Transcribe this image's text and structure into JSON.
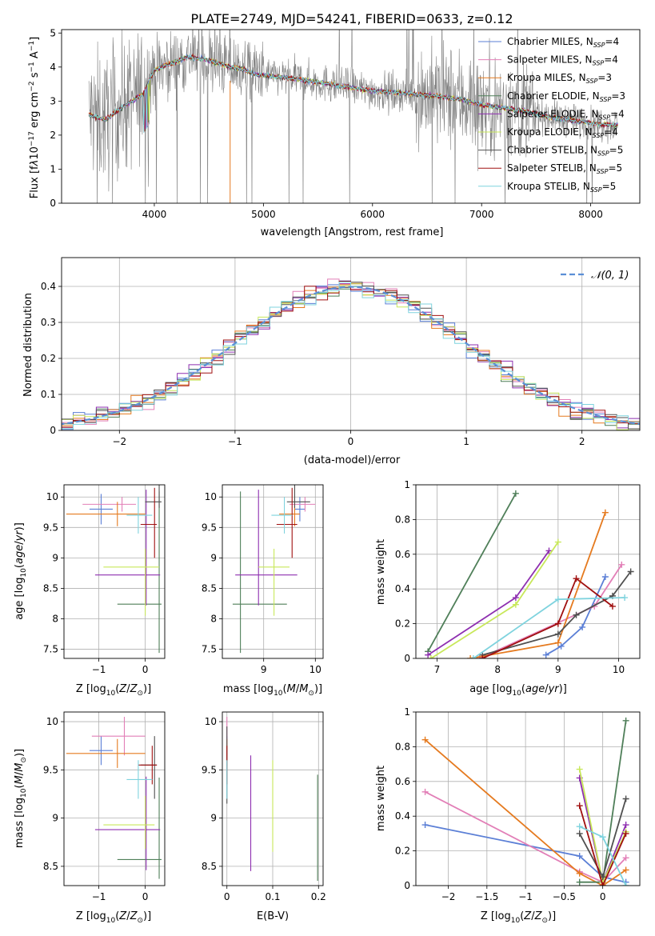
{
  "figure_title": "PLATE=2749, MJD=54241, FIBERID=0633, z=0.12",
  "colors": {
    "chabrier_miles": "#5b7fd6",
    "salpeter_miles": "#e27fb7",
    "kroupa_miles": "#e57a1f",
    "chabrier_elodie": "#4f7f59",
    "salpeter_elodie": "#8e2fb0",
    "kroupa_elodie": "#c8e85a",
    "chabrier_stelib": "#505050",
    "salpeter_stelib": "#a01010",
    "kroupa_stelib": "#7fd3de",
    "normal": "#5b8fd6"
  },
  "legend": [
    {
      "key": "chabrier_miles",
      "label": "Chabrier MILES, N",
      "sub": "SSP",
      "suffix": "=4"
    },
    {
      "key": "salpeter_miles",
      "label": "Salpeter MILES, N",
      "sub": "SSP",
      "suffix": "=4"
    },
    {
      "key": "kroupa_miles",
      "label": "Kroupa MILES, N",
      "sub": "SSP",
      "suffix": "=3"
    },
    {
      "key": "chabrier_elodie",
      "label": "Chabrier ELODIE, N",
      "sub": "SSP",
      "suffix": "=3"
    },
    {
      "key": "salpeter_elodie",
      "label": "Salpeter ELODIE, N",
      "sub": "SSP",
      "suffix": "=4"
    },
    {
      "key": "kroupa_elodie",
      "label": "Kroupa ELODIE, N",
      "sub": "SSP",
      "suffix": "=4"
    },
    {
      "key": "chabrier_stelib",
      "label": "Chabrier STELIB, N",
      "sub": "SSP",
      "suffix": "=5"
    },
    {
      "key": "salpeter_stelib",
      "label": "Salpeter STELIB, N",
      "sub": "SSP",
      "suffix": "=5"
    },
    {
      "key": "kroupa_stelib",
      "label": "Kroupa STELIB, N",
      "sub": "SSP",
      "suffix": "=5"
    }
  ],
  "chart_data": [
    {
      "id": "spectrum",
      "type": "line",
      "xlabel": "wavelength [Angstrom, rest frame]",
      "ylabel": "Flux [f_λ 10^-17 erg cm^-2 s^-1 A^-1]",
      "xlim": [
        3150,
        8450
      ],
      "ylim": [
        0,
        5.1
      ],
      "xticks": [
        4000,
        5000,
        6000,
        7000,
        8000
      ],
      "yticks": [
        0,
        1,
        2,
        3,
        4,
        5
      ],
      "data_color": "#808080",
      "data_range": [
        3400,
        8250
      ],
      "model_continuum": {
        "x": [
          3400,
          3500,
          3550,
          3600,
          3650,
          3700,
          3800,
          3900,
          3950,
          4000,
          4100,
          4200,
          4300,
          4400,
          4500,
          4600,
          4700,
          4800,
          4900,
          5000,
          5200,
          5400,
          5600,
          5800,
          6000,
          6200,
          6400,
          6600,
          6800,
          7000,
          7200,
          7400,
          7600,
          7800,
          8000,
          8200
        ],
        "y": [
          2.6,
          2.5,
          2.45,
          2.55,
          2.7,
          2.8,
          3.0,
          3.2,
          3.6,
          3.9,
          4.05,
          4.15,
          4.3,
          4.25,
          4.2,
          4.1,
          4.0,
          3.95,
          3.8,
          3.75,
          3.7,
          3.6,
          3.5,
          3.4,
          3.3,
          3.25,
          3.2,
          3.15,
          3.05,
          2.9,
          2.8,
          2.7,
          2.55,
          2.45,
          2.35,
          2.3
        ]
      }
    },
    {
      "id": "residuals",
      "type": "histogram",
      "xlabel": "(data-model)/error",
      "ylabel": "Normed distribution",
      "xlim": [
        -2.5,
        2.5
      ],
      "ylim": [
        0,
        0.48
      ],
      "xticks": [
        -2,
        -1,
        0,
        1,
        2
      ],
      "yticks": [
        0.0,
        0.1,
        0.2,
        0.3,
        0.4
      ],
      "legend_label": "𝒩(0, 1)",
      "grid": true
    },
    {
      "id": "age_vs_Z",
      "type": "scatter",
      "xlabel": "Z [log10(Z/Z⊙)]",
      "ylabel": "age  [log10(age/yr)]",
      "xlim": [
        -1.75,
        0.42
      ],
      "ylim": [
        7.35,
        10.2
      ],
      "xticks": [
        -1,
        0
      ],
      "yticks": [
        7.5,
        8.0,
        8.5,
        9.0,
        9.5,
        10.0
      ],
      "grid": true,
      "points": [
        {
          "s": "chabrier_miles",
          "x": -0.95,
          "y": 9.8,
          "xerr": [
            0.25,
            0.25
          ],
          "yerr": [
            0.25,
            0.25
          ]
        },
        {
          "s": "salpeter_miles",
          "x": -0.5,
          "y": 9.88,
          "xerr": [
            0.85,
            0.3
          ],
          "yerr": [
            0.12,
            0.12
          ]
        },
        {
          "s": "kroupa_miles",
          "x": -0.6,
          "y": 9.72,
          "xerr": [
            1.1,
            0.6
          ],
          "yerr": [
            0.2,
            0.2
          ]
        },
        {
          "s": "chabrier_elodie",
          "x": 0.3,
          "y": 8.24,
          "xerr": [
            0.9,
            0.05
          ],
          "yerr": [
            0.8,
            1.85
          ]
        },
        {
          "s": "salpeter_elodie",
          "x": 0.02,
          "y": 8.72,
          "xerr": [
            1.1,
            0.3
          ],
          "yerr": [
            0.5,
            1.4
          ]
        },
        {
          "s": "kroupa_elodie",
          "x": 0.0,
          "y": 8.85,
          "xerr": [
            0.9,
            0.3
          ],
          "yerr": [
            0.8,
            0.3
          ]
        },
        {
          "s": "chabrier_stelib",
          "x": 0.3,
          "y": 9.92,
          "xerr": [
            0.3,
            0.05
          ],
          "yerr": [
            0.1,
            2.5
          ]
        },
        {
          "s": "salpeter_stelib",
          "x": 0.2,
          "y": 9.55,
          "xerr": [
            0.3,
            0.05
          ],
          "yerr": [
            0.55,
            0.6
          ]
        },
        {
          "s": "kroupa_stelib",
          "x": -0.15,
          "y": 9.7,
          "xerr": [
            0.25,
            0.3
          ],
          "yerr": [
            0.3,
            0.3
          ]
        }
      ]
    },
    {
      "id": "age_vs_mass",
      "type": "scatter",
      "xlabel": "mass [log10(M/M⊙)]",
      "ylabel": "",
      "xlim": [
        8.2,
        10.15
      ],
      "ylim": [
        7.35,
        10.2
      ],
      "xticks": [
        9,
        10
      ],
      "yticks": [
        7.5,
        8.0,
        8.5,
        9.0,
        9.5,
        10.0
      ],
      "grid": true,
      "points": [
        {
          "s": "chabrier_miles",
          "x": 9.7,
          "y": 9.8,
          "xerr": [
            0.1,
            0.1
          ],
          "yerr": [
            0.2,
            0.2
          ]
        },
        {
          "s": "salpeter_miles",
          "x": 9.8,
          "y": 9.88,
          "xerr": [
            0.3,
            0.2
          ],
          "yerr": [
            0.12,
            0.12
          ]
        },
        {
          "s": "kroupa_miles",
          "x": 9.6,
          "y": 9.72,
          "xerr": [
            0.3,
            0.1
          ],
          "yerr": [
            0.2,
            0.2
          ]
        },
        {
          "s": "chabrier_elodie",
          "x": 8.55,
          "y": 8.24,
          "xerr": [
            0.15,
            0.9
          ],
          "yerr": [
            0.8,
            1.85
          ]
        },
        {
          "s": "salpeter_elodie",
          "x": 8.9,
          "y": 8.72,
          "xerr": [
            0.45,
            0.75
          ],
          "yerr": [
            0.5,
            1.4
          ]
        },
        {
          "s": "kroupa_elodie",
          "x": 9.2,
          "y": 8.85,
          "xerr": [
            0.3,
            0.3
          ],
          "yerr": [
            0.8,
            0.3
          ]
        },
        {
          "s": "chabrier_stelib",
          "x": 9.6,
          "y": 9.92,
          "xerr": [
            0.15,
            0.3
          ],
          "yerr": [
            0.1,
            2.5
          ]
        },
        {
          "s": "salpeter_stelib",
          "x": 9.55,
          "y": 9.55,
          "xerr": [
            0.3,
            0.1
          ],
          "yerr": [
            0.55,
            0.6
          ]
        },
        {
          "s": "kroupa_stelib",
          "x": 9.4,
          "y": 9.7,
          "xerr": [
            0.25,
            0.15
          ],
          "yerr": [
            0.3,
            0.3
          ]
        }
      ]
    },
    {
      "id": "weight_vs_age",
      "type": "line",
      "xlabel": "age  [log10(age/yr)]",
      "ylabel": "mass weight",
      "xlim": [
        6.65,
        10.35
      ],
      "ylim": [
        0,
        1.0
      ],
      "xticks": [
        7,
        8,
        9,
        10
      ],
      "yticks": [
        0.0,
        0.2,
        0.4,
        0.6,
        0.8,
        1.0
      ],
      "grid": true,
      "series": [
        {
          "s": "chabrier_miles",
          "x": [
            8.8,
            9.05,
            9.4,
            9.78
          ],
          "y": [
            0.02,
            0.07,
            0.18,
            0.47
          ]
        },
        {
          "s": "salpeter_miles",
          "x": [
            7.7,
            9.6,
            10.05
          ],
          "y": [
            0.0,
            0.3,
            0.54
          ]
        },
        {
          "s": "kroupa_miles",
          "x": [
            7.55,
            9.0,
            9.78
          ],
          "y": [
            0.0,
            0.09,
            0.84
          ]
        },
        {
          "s": "chabrier_elodie",
          "x": [
            6.85,
            8.3
          ],
          "y": [
            0.04,
            0.95
          ]
        },
        {
          "s": "salpeter_elodie",
          "x": [
            6.85,
            8.3,
            8.85
          ],
          "y": [
            0.02,
            0.35,
            0.62
          ]
        },
        {
          "s": "kroupa_elodie",
          "x": [
            6.9,
            8.3,
            9.0
          ],
          "y": [
            0.0,
            0.31,
            0.67
          ]
        },
        {
          "s": "chabrier_stelib",
          "x": [
            7.75,
            9.0,
            9.3,
            9.9,
            10.2
          ],
          "y": [
            0.02,
            0.14,
            0.25,
            0.36,
            0.5
          ]
        },
        {
          "s": "salpeter_stelib",
          "x": [
            7.75,
            9.0,
            9.3,
            9.9
          ],
          "y": [
            0.0,
            0.2,
            0.46,
            0.3
          ]
        },
        {
          "s": "kroupa_stelib",
          "x": [
            7.6,
            9.0,
            10.1
          ],
          "y": [
            0.0,
            0.34,
            0.35
          ]
        }
      ]
    },
    {
      "id": "mass_vs_Z",
      "type": "scatter",
      "xlabel": "Z [log10(Z/Z⊙)]",
      "ylabel": "mass [log10(M/M⊙)]",
      "xlim": [
        -1.75,
        0.42
      ],
      "ylim": [
        8.3,
        10.1
      ],
      "xticks": [
        -1,
        0
      ],
      "yticks": [
        8.5,
        9.0,
        9.5,
        10.0
      ],
      "grid": true,
      "points": [
        {
          "s": "chabrier_miles",
          "x": -0.95,
          "y": 9.7,
          "xerr": [
            0.25,
            0.25
          ],
          "yerr": [
            0.15,
            0.15
          ]
        },
        {
          "s": "salpeter_miles",
          "x": -0.45,
          "y": 9.85,
          "xerr": [
            0.7,
            0.45
          ],
          "yerr": [
            0.2,
            0.2
          ]
        },
        {
          "s": "kroupa_miles",
          "x": -0.6,
          "y": 9.67,
          "xerr": [
            1.1,
            0.6
          ],
          "yerr": [
            0.15,
            0.15
          ]
        },
        {
          "s": "chabrier_elodie",
          "x": 0.3,
          "y": 8.57,
          "xerr": [
            0.9,
            0.05
          ],
          "yerr": [
            0.2,
            0.85
          ]
        },
        {
          "s": "salpeter_elodie",
          "x": 0.02,
          "y": 8.88,
          "xerr": [
            1.1,
            0.3
          ],
          "yerr": [
            0.42,
            0.55
          ]
        },
        {
          "s": "kroupa_elodie",
          "x": 0.0,
          "y": 8.93,
          "xerr": [
            0.9,
            0.2
          ],
          "yerr": [
            0.25,
            0.3
          ]
        },
        {
          "s": "chabrier_stelib",
          "x": 0.2,
          "y": 9.55,
          "xerr": [
            0.3,
            0.05
          ],
          "yerr": [
            0.35,
            0.3
          ]
        },
        {
          "s": "salpeter_stelib",
          "x": 0.15,
          "y": 9.55,
          "xerr": [
            0.3,
            0.1
          ],
          "yerr": [
            0.2,
            0.2
          ]
        },
        {
          "s": "kroupa_stelib",
          "x": -0.15,
          "y": 9.4,
          "xerr": [
            0.25,
            0.3
          ],
          "yerr": [
            0.2,
            0.2
          ]
        }
      ]
    },
    {
      "id": "mass_vs_ebv",
      "type": "scatter",
      "xlabel": "E(B-V)",
      "ylabel": "",
      "xlim": [
        -0.01,
        0.21
      ],
      "ylim": [
        8.3,
        10.1
      ],
      "xticks": [
        0.0,
        0.1,
        0.2
      ],
      "yticks": [
        8.5,
        9.0,
        9.5,
        10.0
      ],
      "grid": true,
      "points": [
        {
          "s": "chabrier_miles",
          "x": 0.0,
          "y": 9.7,
          "xerr": [
            0,
            0
          ],
          "yerr": [
            0.15,
            0.15
          ]
        },
        {
          "s": "salpeter_miles",
          "x": 0.0,
          "y": 9.85,
          "xerr": [
            0,
            0
          ],
          "yerr": [
            0.2,
            0.2
          ]
        },
        {
          "s": "kroupa_miles",
          "x": 0.0,
          "y": 9.67,
          "xerr": [
            0,
            0
          ],
          "yerr": [
            0.15,
            0.15
          ]
        },
        {
          "s": "salpeter_elodie",
          "x": 0.052,
          "y": 9.05,
          "xerr": [
            0,
            0
          ],
          "yerr": [
            0.6,
            0.6
          ]
        },
        {
          "s": "kroupa_elodie",
          "x": 0.1,
          "y": 9.1,
          "xerr": [
            0,
            0
          ],
          "yerr": [
            0.45,
            0.5
          ]
        },
        {
          "s": "chabrier_elodie",
          "x": 0.198,
          "y": 8.9,
          "xerr": [
            0,
            0
          ],
          "yerr": [
            0.55,
            0.55
          ]
        },
        {
          "s": "chabrier_stelib",
          "x": 0.0,
          "y": 9.55,
          "xerr": [
            0,
            0
          ],
          "yerr": [
            0.4,
            0.4
          ]
        },
        {
          "s": "salpeter_stelib",
          "x": 0.0,
          "y": 9.55,
          "xerr": [
            0,
            0
          ],
          "yerr": [
            0.2,
            0.2
          ]
        },
        {
          "s": "kroupa_stelib",
          "x": 0.0,
          "y": 9.4,
          "xerr": [
            0,
            0
          ],
          "yerr": [
            0.2,
            0.2
          ]
        }
      ]
    },
    {
      "id": "weight_vs_Z",
      "type": "line",
      "xlabel": "Z [log10(Z/Z⊙)]",
      "ylabel": "mass weight",
      "xlim": [
        -2.42,
        0.48
      ],
      "ylim": [
        0,
        1.0
      ],
      "xticks": [
        -2.0,
        -1.5,
        -1.0,
        -0.5,
        0.0
      ],
      "yticks": [
        0.0,
        0.2,
        0.4,
        0.6,
        0.8,
        1.0
      ],
      "grid": true,
      "series": [
        {
          "s": "chabrier_miles",
          "x": [
            -2.3,
            -0.3,
            0.0,
            0.3
          ],
          "y": [
            0.35,
            0.17,
            0.05,
            0.02
          ]
        },
        {
          "s": "salpeter_miles",
          "x": [
            -2.3,
            -0.3,
            0.0,
            0.3
          ],
          "y": [
            0.54,
            0.08,
            0.02,
            0.16
          ]
        },
        {
          "s": "kroupa_miles",
          "x": [
            -2.3,
            -0.3,
            0.0,
            0.3
          ],
          "y": [
            0.84,
            0.07,
            0.0,
            0.09
          ]
        },
        {
          "s": "chabrier_elodie",
          "x": [
            -0.3,
            0.0,
            0.3
          ],
          "y": [
            0.02,
            0.02,
            0.95
          ]
        },
        {
          "s": "salpeter_elodie",
          "x": [
            -0.3,
            0.0,
            0.3
          ],
          "y": [
            0.62,
            0.02,
            0.35
          ]
        },
        {
          "s": "kroupa_elodie",
          "x": [
            -0.3,
            0.0,
            0.3
          ],
          "y": [
            0.67,
            0.02,
            0.31
          ]
        },
        {
          "s": "chabrier_stelib",
          "x": [
            -0.3,
            0.0,
            0.3
          ],
          "y": [
            0.3,
            0.05,
            0.5
          ]
        },
        {
          "s": "salpeter_stelib",
          "x": [
            -0.3,
            0.0,
            0.3
          ],
          "y": [
            0.46,
            0.0,
            0.3
          ]
        },
        {
          "s": "kroupa_stelib",
          "x": [
            -0.3,
            0.0,
            0.3
          ],
          "y": [
            0.34,
            0.28,
            0.0
          ]
        }
      ]
    }
  ]
}
